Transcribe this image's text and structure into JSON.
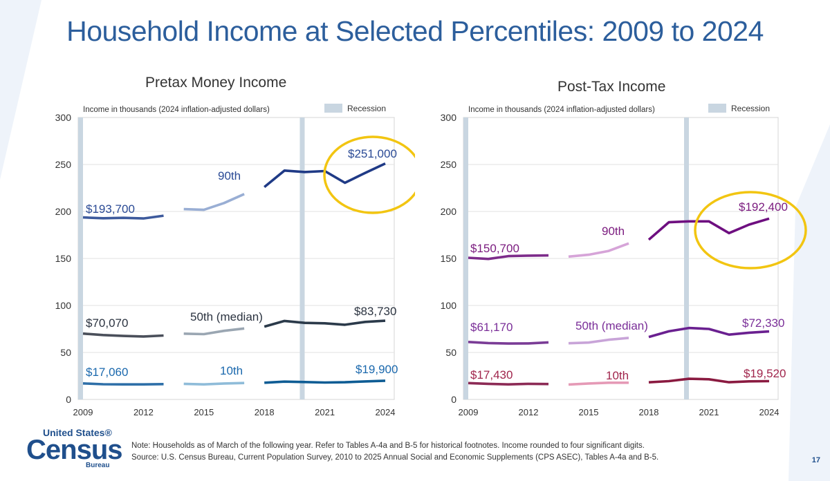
{
  "title": "Household Income at Selected Percentiles: 2009 to 2024",
  "footer": {
    "logo_line1": "United States®",
    "logo_line2": "Census",
    "logo_line3": "Bureau",
    "note": "Note: Households as of March of the following year. Refer to Tables A-4a and B-5 for historical footnotes. Income rounded to four significant digits.",
    "source": "Source: U.S. Census Bureau, Current Population Survey, 2010 to 2025 Annual Social and Economic Supplements (CPS ASEC), Tables A-4a and B-5.",
    "page_number": "17"
  },
  "chart_data": [
    {
      "type": "line",
      "title": "Pretax Money Income",
      "ylabel": "Income in thousands (2024 inflation-adjusted dollars)",
      "legend": "Recession",
      "ylim": [
        0,
        300
      ],
      "xlim": [
        2009,
        2024
      ],
      "yticks": [
        "0",
        "50",
        "100",
        "150",
        "200",
        "250",
        "300"
      ],
      "xticks": [
        "2009",
        "2012",
        "2015",
        "2018",
        "2021",
        "2024"
      ],
      "recessions": [
        2009,
        2020
      ],
      "x": [
        2009,
        2010,
        2011,
        2012,
        2013,
        2014,
        2015,
        2016,
        2017,
        2018,
        2019,
        2020,
        2021,
        2022,
        2023,
        2024
      ],
      "series": [
        {
          "name": "90th",
          "label": "90th",
          "start_label": "$193,700",
          "end_label": "$251,000",
          "values": [
            193.7,
            192.8,
            193.2,
            192.6,
            195.5,
            202.5,
            201.8,
            209.0,
            218.5,
            226.0,
            243.5,
            242.0,
            243.0,
            230.5,
            241.0,
            251.0
          ]
        },
        {
          "name": "50th",
          "label": "50th (median)",
          "start_label": "$70,070",
          "end_label": "$83,730",
          "values": [
            70.07,
            68.5,
            67.6,
            67.0,
            68.0,
            70.0,
            69.5,
            73.0,
            75.5,
            77.5,
            83.5,
            81.5,
            81.0,
            79.5,
            82.5,
            83.73
          ]
        },
        {
          "name": "10th",
          "label": "10th",
          "start_label": "$17,060",
          "end_label": "$19,900",
          "values": [
            17.06,
            16.2,
            16.0,
            16.0,
            16.3,
            16.6,
            16.0,
            17.0,
            17.5,
            17.8,
            19.0,
            18.5,
            18.0,
            18.3,
            19.2,
            19.9
          ]
        }
      ]
    },
    {
      "type": "line",
      "title": "Post-Tax Income",
      "ylabel": "Income in thousands (2024 inflation-adjusted dollars)",
      "legend": "Recession",
      "ylim": [
        0,
        300
      ],
      "xlim": [
        2009,
        2024
      ],
      "yticks": [
        "0",
        "50",
        "100",
        "150",
        "200",
        "250",
        "300"
      ],
      "xticks": [
        "2009",
        "2012",
        "2015",
        "2018",
        "2021",
        "2024"
      ],
      "recessions": [
        2009,
        2020
      ],
      "x": [
        2009,
        2010,
        2011,
        2012,
        2013,
        2014,
        2015,
        2016,
        2017,
        2018,
        2019,
        2020,
        2021,
        2022,
        2023,
        2024
      ],
      "series": [
        {
          "name": "90th",
          "label": "90th",
          "start_label": "$150,700",
          "end_label": "$192,400",
          "values": [
            150.7,
            149.5,
            152.5,
            153.0,
            153.2,
            152.0,
            154.0,
            158.0,
            166.0,
            170.0,
            188.5,
            189.5,
            189.5,
            177.0,
            186.0,
            192.4
          ]
        },
        {
          "name": "50th",
          "label": "50th (median)",
          "start_label": "$61,170",
          "end_label": "$72,330",
          "values": [
            61.17,
            60.0,
            59.5,
            59.6,
            60.7,
            59.8,
            60.5,
            63.5,
            65.5,
            66.5,
            72.5,
            76.0,
            75.0,
            69.0,
            71.0,
            72.33
          ]
        },
        {
          "name": "10th",
          "label": "10th",
          "start_label": "$17,430",
          "end_label": "$19,520",
          "values": [
            17.43,
            16.6,
            16.0,
            16.6,
            16.4,
            15.9,
            17.0,
            17.8,
            17.8,
            18.2,
            19.5,
            22.0,
            21.5,
            18.3,
            19.3,
            19.52
          ]
        }
      ]
    }
  ]
}
